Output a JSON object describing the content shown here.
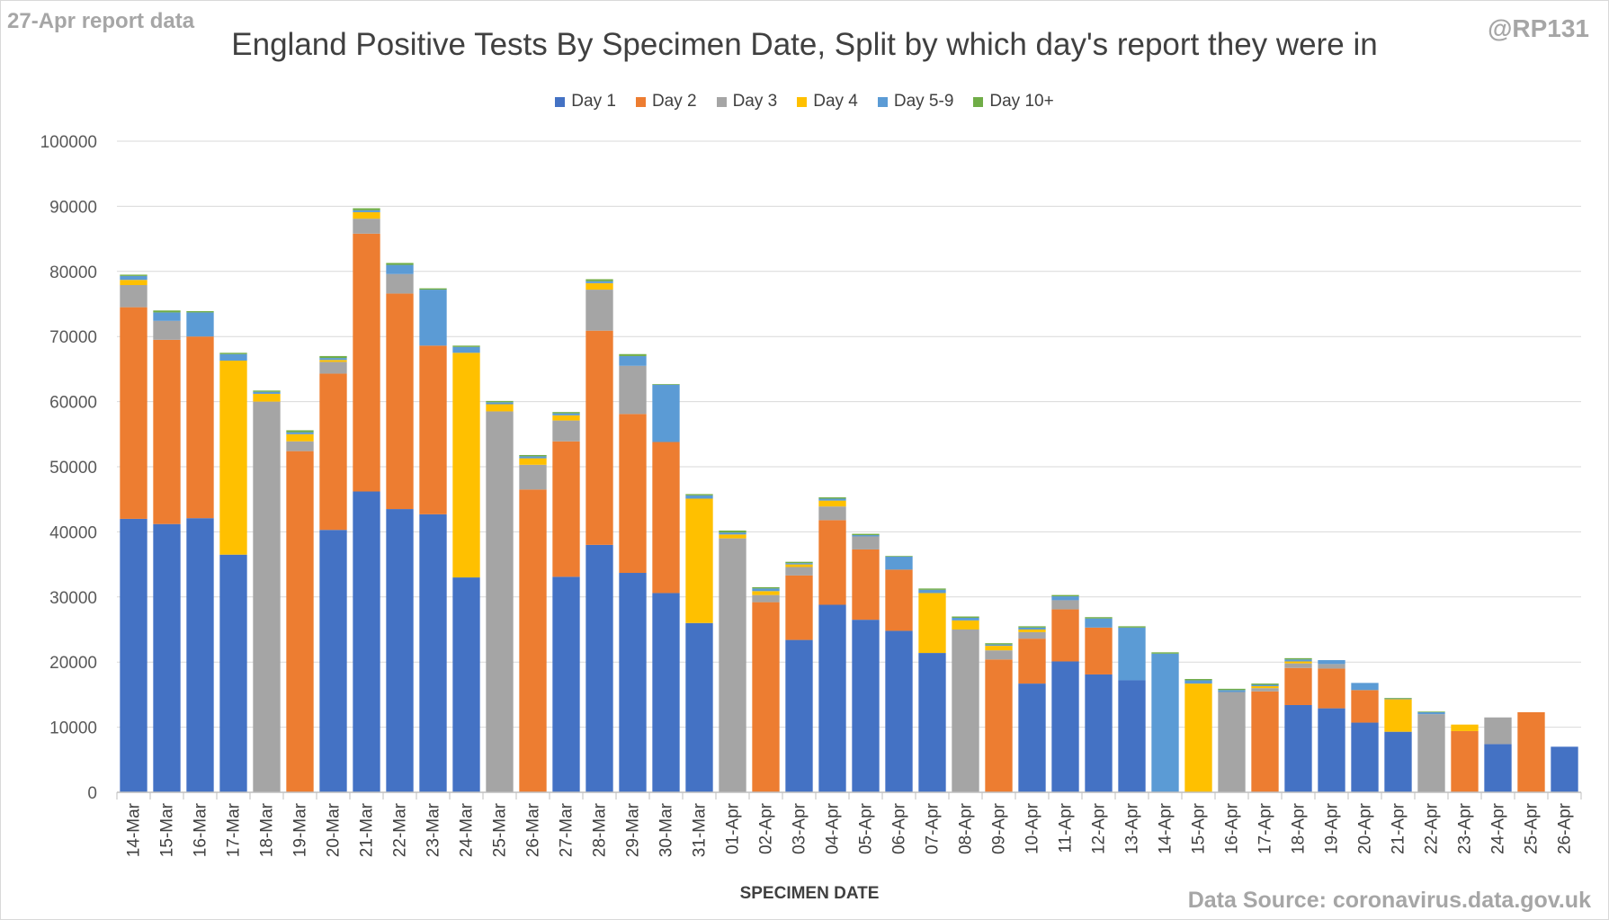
{
  "corner_label": "27-Apr report data",
  "handle": "@RP131",
  "source": "Data Source: coronavirus.data.gov.uk",
  "chart_data": {
    "type": "bar",
    "stacked": true,
    "title": "England Positive Tests By Specimen Date, Split by which day's report they were in",
    "xlabel": "SPECIMEN DATE",
    "ylabel": "",
    "ylim": [
      0,
      100000
    ],
    "yticks": [
      0,
      10000,
      20000,
      30000,
      40000,
      50000,
      60000,
      70000,
      80000,
      90000,
      100000
    ],
    "grid": true,
    "legend_position": "top",
    "categories": [
      "14-Mar",
      "15-Mar",
      "16-Mar",
      "17-Mar",
      "18-Mar",
      "19-Mar",
      "20-Mar",
      "21-Mar",
      "22-Mar",
      "23-Mar",
      "24-Mar",
      "25-Mar",
      "26-Mar",
      "27-Mar",
      "28-Mar",
      "29-Mar",
      "30-Mar",
      "31-Mar",
      "01-Apr",
      "02-Apr",
      "03-Apr",
      "04-Apr",
      "05-Apr",
      "06-Apr",
      "07-Apr",
      "08-Apr",
      "09-Apr",
      "10-Apr",
      "11-Apr",
      "12-Apr",
      "13-Apr",
      "14-Apr",
      "15-Apr",
      "16-Apr",
      "17-Apr",
      "18-Apr",
      "19-Apr",
      "20-Apr",
      "21-Apr",
      "22-Apr",
      "23-Apr",
      "24-Apr",
      "25-Apr",
      "26-Apr"
    ],
    "series": [
      {
        "name": "Day 1",
        "color": "#4472c4",
        "values": [
          42000,
          41200,
          42100,
          36500,
          0,
          0,
          40300,
          46200,
          43500,
          42700,
          33000,
          0,
          0,
          33100,
          38000,
          33700,
          30600,
          26000,
          0,
          0,
          23400,
          28800,
          26500,
          24800,
          21400,
          0,
          0,
          16700,
          20100,
          18100,
          17200,
          0,
          0,
          0,
          0,
          13400,
          12900,
          10700,
          9300,
          0,
          0,
          7400,
          0,
          7000
        ]
      },
      {
        "name": "Day 2",
        "color": "#ed7d31",
        "values": [
          32500,
          28300,
          27900,
          0,
          0,
          52400,
          24000,
          39600,
          33100,
          25900,
          0,
          0,
          46500,
          20800,
          32900,
          24400,
          23200,
          0,
          0,
          29200,
          9900,
          13000,
          10800,
          9400,
          0,
          0,
          20400,
          6900,
          8000,
          7200,
          0,
          0,
          0,
          0,
          15500,
          5700,
          6100,
          5000,
          0,
          0,
          9400,
          0,
          12300,
          0
        ]
      },
      {
        "name": "Day 3",
        "color": "#a5a5a5",
        "values": [
          3400,
          2900,
          0,
          0,
          60000,
          1500,
          1800,
          2300,
          3000,
          0,
          0,
          58500,
          3800,
          3200,
          6300,
          7400,
          0,
          0,
          39000,
          1100,
          1300,
          2100,
          2000,
          0,
          0,
          25000,
          1400,
          1000,
          1400,
          0,
          0,
          0,
          0,
          15400,
          500,
          700,
          700,
          0,
          0,
          12000,
          0,
          4100,
          0,
          0
        ]
      },
      {
        "name": "Day 4",
        "color": "#ffc000",
        "values": [
          800,
          0,
          0,
          29800,
          1200,
          1100,
          300,
          1000,
          0,
          0,
          34500,
          1100,
          1000,
          800,
          1000,
          0,
          0,
          19100,
          600,
          600,
          400,
          900,
          0,
          0,
          9200,
          1400,
          700,
          400,
          0,
          0,
          0,
          0,
          16700,
          0,
          300,
          300,
          0,
          0,
          5000,
          0,
          1000,
          0,
          0,
          0
        ]
      },
      {
        "name": "Day 5-9",
        "color": "#5b9bd5",
        "values": [
          600,
          1300,
          3700,
          1000,
          300,
          300,
          300,
          300,
          1400,
          8600,
          900,
          300,
          300,
          300,
          300,
          1500,
          8800,
          500,
          300,
          400,
          200,
          300,
          200,
          2000,
          500,
          400,
          200,
          300,
          600,
          1400,
          8100,
          21300,
          500,
          300,
          200,
          300,
          600,
          1100,
          100,
          300,
          0,
          0,
          0,
          0
        ]
      },
      {
        "name": "Day 10+",
        "color": "#70ad47",
        "values": [
          200,
          300,
          200,
          200,
          200,
          300,
          300,
          300,
          300,
          200,
          200,
          200,
          200,
          200,
          300,
          300,
          100,
          200,
          300,
          200,
          200,
          200,
          200,
          100,
          200,
          200,
          200,
          200,
          200,
          200,
          200,
          200,
          200,
          200,
          200,
          200,
          0,
          0,
          100,
          100,
          0,
          0,
          0,
          0
        ]
      }
    ]
  }
}
